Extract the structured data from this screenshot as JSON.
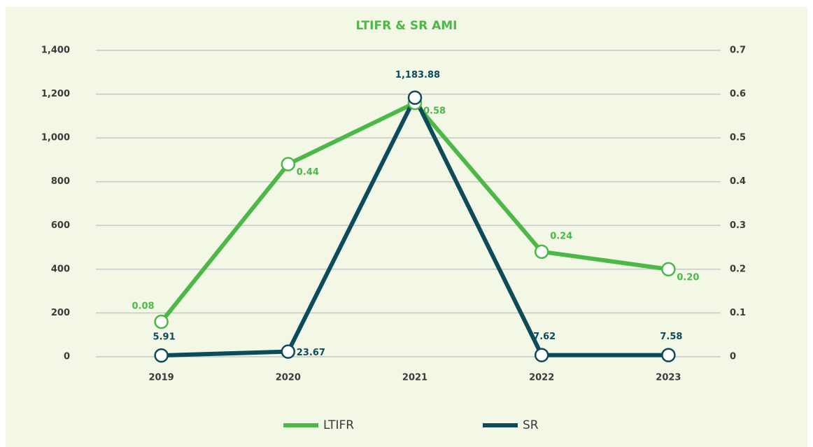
{
  "chart_data": {
    "type": "line",
    "title": "LTIFR & SR AMI",
    "categories": [
      "2019",
      "2020",
      "2021",
      "2022",
      "2023"
    ],
    "series": [
      {
        "name": "LTIFR",
        "color": "#4cb848",
        "axis": "y2",
        "values": [
          0.08,
          0.44,
          0.58,
          0.24,
          0.2
        ],
        "value_labels": [
          "0.08",
          "0.44",
          "0.58",
          "0.24",
          "0.20"
        ]
      },
      {
        "name": "SR",
        "color": "#0d4a5a",
        "values": [
          5.91,
          23.67,
          1183.88,
          7.62,
          7.58
        ],
        "value_labels": [
          "5.91",
          "23.67",
          "1,183.88",
          "7.62",
          "7.58"
        ]
      }
    ],
    "ylim": [
      0,
      1400
    ],
    "yticks": [
      0,
      200,
      400,
      600,
      800,
      {
        "value": 1000,
        "label": "1,000"
      },
      {
        "value": 1200,
        "label": "1,200"
      },
      {
        "value": 1400,
        "label": "1,400"
      }
    ],
    "y2lim": [
      0,
      0.7
    ],
    "y2ticks": [
      0,
      0.1,
      0.2,
      0.3,
      0.4,
      0.5,
      0.6,
      0.7
    ],
    "grid": true,
    "legend": "bottom"
  }
}
